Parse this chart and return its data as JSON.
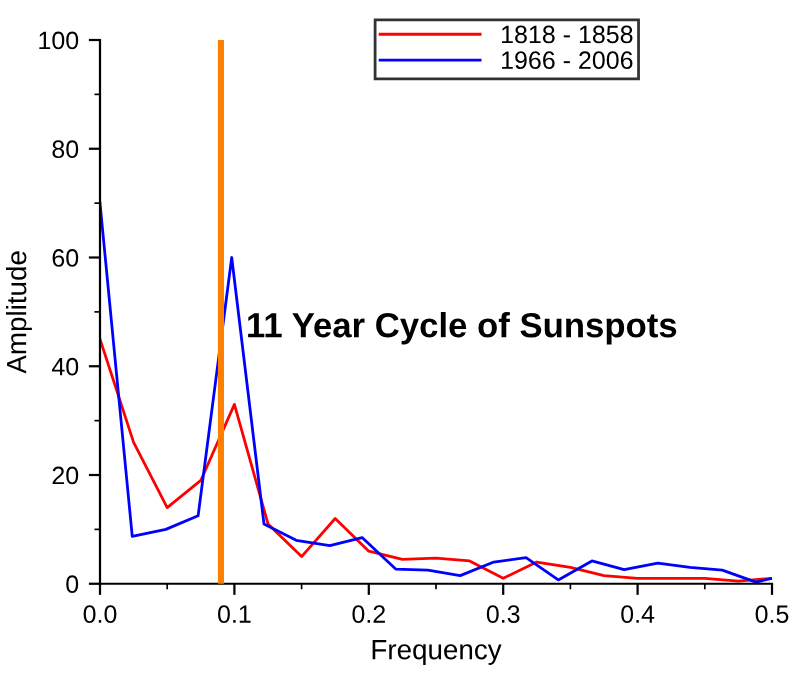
{
  "chart_data": {
    "type": "line",
    "xlabel": "Frequency",
    "ylabel": "Amplitude",
    "xlim": [
      0,
      0.5
    ],
    "xticks": [
      {
        "value": 0,
        "label": "0.0"
      },
      0.1,
      0.2,
      0.3,
      0.4,
      0.5
    ],
    "ylim": [
      0,
      100
    ],
    "yticks": [
      0,
      20,
      40,
      60,
      80,
      100
    ],
    "series": [
      {
        "name": "1818 - 1858",
        "color": "#ff0000",
        "x": [
          0,
          0.025,
          0.05,
          0.075,
          0.1,
          0.125,
          0.15,
          0.175,
          0.2,
          0.225,
          0.25,
          0.275,
          0.3,
          0.325,
          0.35,
          0.375,
          0.4,
          0.425,
          0.45,
          0.475,
          0.5
        ],
        "values": [
          45,
          26,
          14,
          19,
          33,
          11,
          5,
          12,
          6,
          4.5,
          4.7,
          4.2,
          1,
          4,
          3,
          1.5,
          1,
          1,
          1,
          0.5,
          1
        ]
      },
      {
        "name": "1966 - 2006",
        "color": "#0000ff",
        "x": [
          0,
          0.024,
          0.049,
          0.073,
          0.098,
          0.122,
          0.146,
          0.171,
          0.195,
          0.22,
          0.244,
          0.268,
          0.293,
          0.317,
          0.341,
          0.366,
          0.39,
          0.415,
          0.439,
          0.463,
          0.488,
          0.5
        ],
        "values": [
          70,
          8.7,
          10,
          12.5,
          60,
          11,
          8,
          7,
          8.5,
          2.7,
          2.5,
          1.5,
          4,
          4.8,
          0.7,
          4.2,
          2.6,
          3.8,
          3,
          2.5,
          0.3,
          1
        ]
      }
    ],
    "ref_lines": [
      {
        "axis": "x",
        "value": 0.09,
        "label": "11 Year Cycle of Sunspots",
        "color": "#ff8000"
      }
    ],
    "legend": "top right",
    "grid": false
  }
}
